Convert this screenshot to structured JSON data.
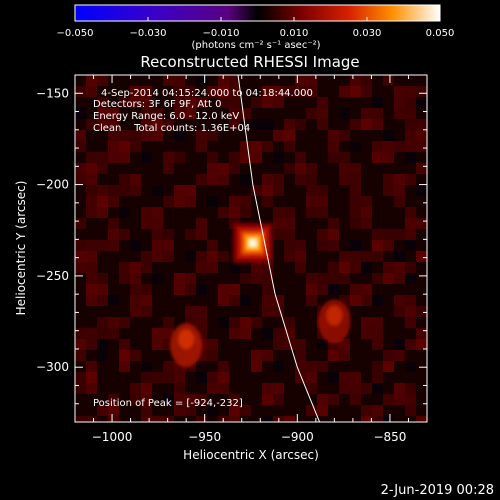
{
  "chart_data": {
    "type": "heatmap",
    "title": "Reconstructed RHESSI Image",
    "xlabel": "Heliocentric X (arcsec)",
    "ylabel": "Heliocentric Y (arcsec)",
    "xlim": [
      -1020,
      -830
    ],
    "ylim": [
      -330,
      -140
    ],
    "x_ticks": [
      -1000,
      -950,
      -900,
      -850
    ],
    "x_tick_labels": [
      "−1000",
      "−950",
      "−900",
      "−850"
    ],
    "y_ticks": [
      -150,
      -200,
      -250,
      -300
    ],
    "y_tick_labels": [
      "−150",
      "−200",
      "−250",
      "−300"
    ],
    "colorbar": {
      "min": -0.05,
      "max": 0.05,
      "ticks": [
        -0.05,
        -0.03,
        -0.01,
        0.01,
        0.03,
        0.05
      ],
      "tick_labels": [
        "−0.050",
        "−0.030",
        "−0.010",
        "0.010",
        "0.030",
        "0.050"
      ],
      "unit_label": "(photons cm⁻² s⁻¹ asec⁻²)"
    },
    "sources": [
      {
        "x": -924,
        "y": -232,
        "intensity": 1.0
      },
      {
        "x": -960,
        "y": -288,
        "intensity": 0.45
      },
      {
        "x": -880,
        "y": -275,
        "intensity": 0.3
      }
    ],
    "limb_curve": [
      [
        -932,
        -140
      ],
      [
        -924,
        -200
      ],
      [
        -912,
        -260
      ],
      [
        -900,
        -300
      ],
      [
        -888,
        -330
      ]
    ],
    "info": {
      "time_range": "4-Sep-2014 04:15:24.000 to 04:18:44.000",
      "detectors": "Detectors: 3F 6F 9F, Att 0",
      "energy": "Energy Range: 6.0 - 12.0 keV",
      "method": "Clean    Total counts: 1.36E+04",
      "peak": "Position of Peak = [-924,-232]"
    },
    "footer_date": "2-Jun-2019 00:28"
  }
}
